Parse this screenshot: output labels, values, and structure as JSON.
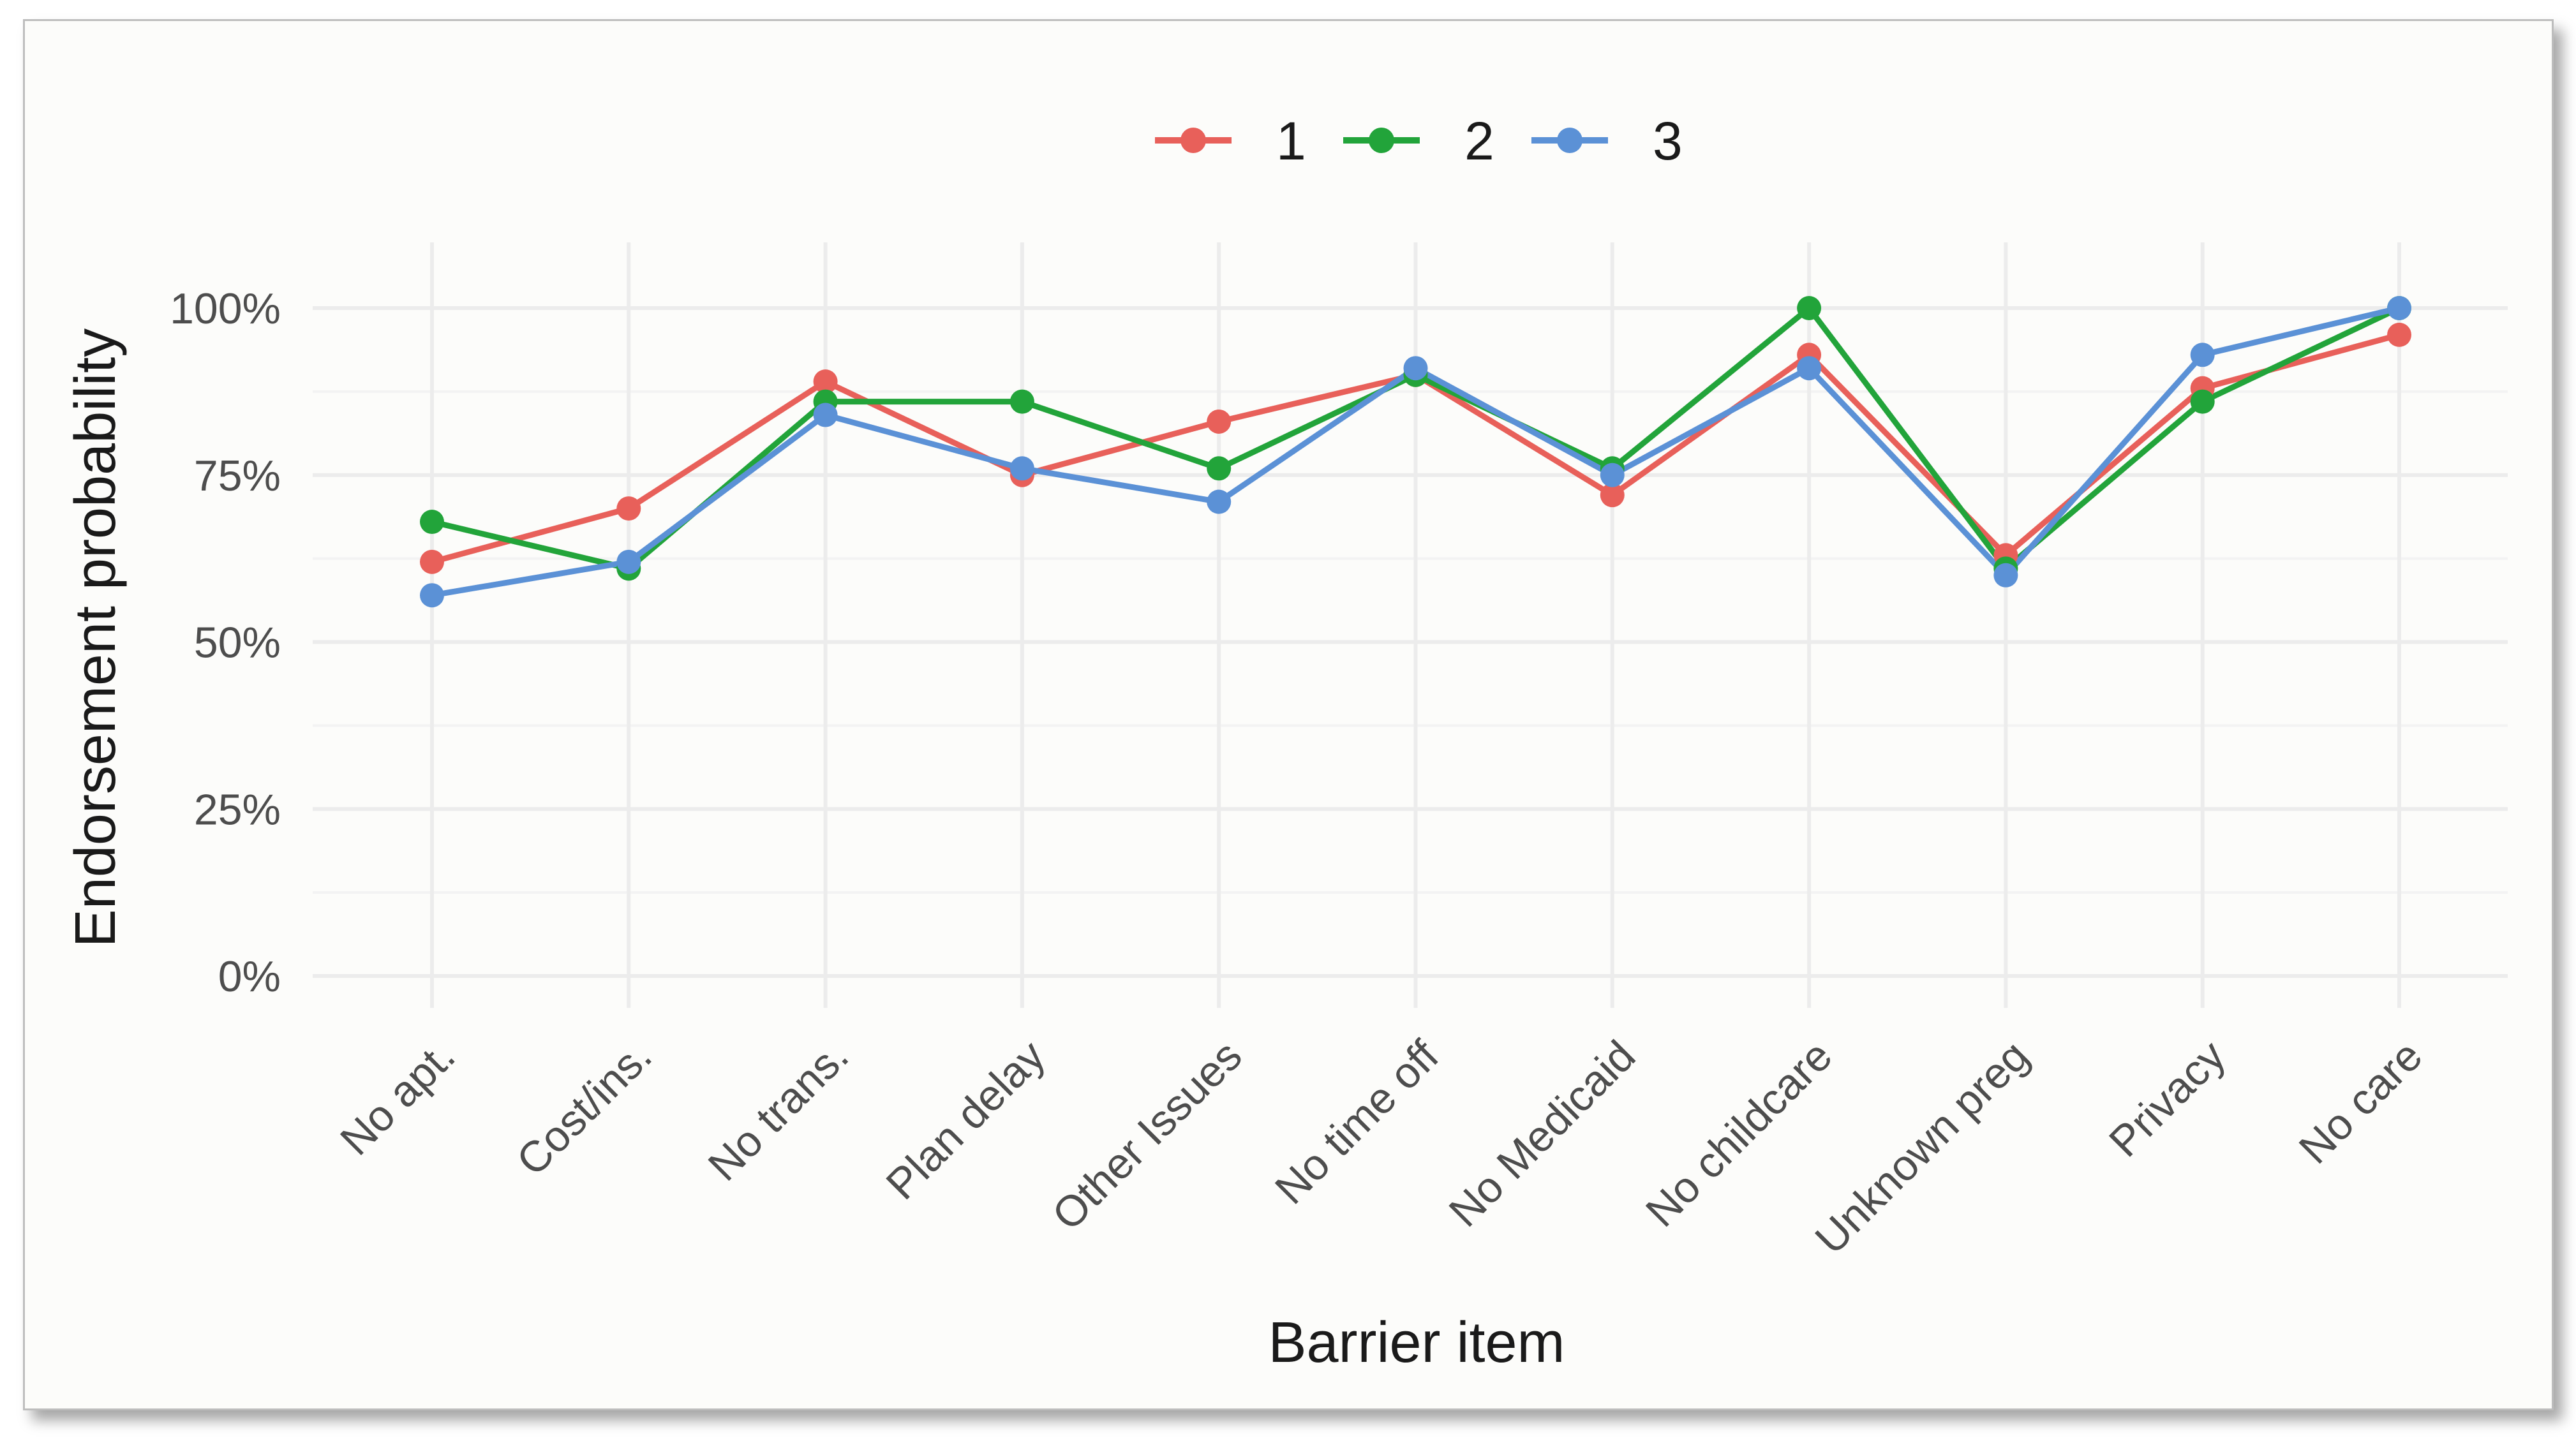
{
  "chart_data": {
    "type": "line",
    "xlabel": "Barrier item",
    "ylabel": "Endorsement probability",
    "categories": [
      "No apt.",
      "Cost/ins.",
      "No trans.",
      "Plan delay",
      "Other Issues",
      "No time off",
      "No Medicaid",
      "No childcare",
      "Unknown preg",
      "Privacy",
      "No care"
    ],
    "ylim": [
      0,
      1
    ],
    "yticks": [
      {
        "value": 0,
        "label": "0%"
      },
      {
        "value": 0.25,
        "label": "25%"
      },
      {
        "value": 0.5,
        "label": "50%"
      },
      {
        "value": 0.75,
        "label": "75%"
      },
      {
        "value": 1.0,
        "label": "100%"
      }
    ],
    "grid": true,
    "legend_position": "top",
    "series": [
      {
        "name": "1",
        "color": "#e8605a",
        "values": [
          0.62,
          0.7,
          0.89,
          0.75,
          0.83,
          0.9,
          0.72,
          0.93,
          0.63,
          0.88,
          0.96
        ]
      },
      {
        "name": "2",
        "color": "#22a43a",
        "values": [
          0.68,
          0.61,
          0.86,
          0.86,
          0.76,
          0.9,
          0.76,
          1.0,
          0.61,
          0.86,
          1.0
        ]
      },
      {
        "name": "3",
        "color": "#5b91d6",
        "values": [
          0.57,
          0.62,
          0.84,
          0.76,
          0.71,
          0.91,
          0.75,
          0.91,
          0.6,
          0.93,
          1.0
        ]
      }
    ]
  }
}
